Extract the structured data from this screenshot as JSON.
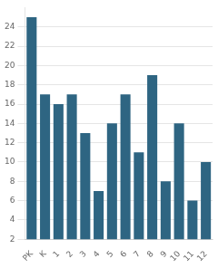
{
  "chart_data": {
    "type": "bar",
    "categories": [
      "PK",
      "K",
      "1",
      "2",
      "3",
      "4",
      "5",
      "6",
      "7",
      "8",
      "9",
      "10",
      "11",
      "12"
    ],
    "values": [
      25,
      17,
      16,
      17,
      13,
      7,
      14,
      17,
      11,
      19,
      8,
      14,
      6,
      10
    ],
    "color": "#2e6582",
    "ylim": [
      2,
      26
    ],
    "yticks": [
      2,
      4,
      6,
      8,
      10,
      12,
      14,
      16,
      18,
      20,
      22,
      24
    ],
    "grid": true
  }
}
